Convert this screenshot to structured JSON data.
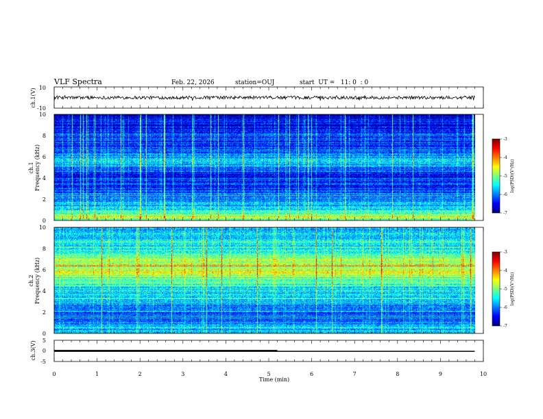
{
  "header": {
    "title": "VLF Spectra",
    "date": "Feb. 22, 2026",
    "station": "station=OUJ",
    "start": "start  UT =   11: 0  : 0"
  },
  "chart_data": [
    {
      "type": "line",
      "panel": "ch1-waveform",
      "ylabel": "ch.1(V)",
      "ylim": [
        -10,
        10
      ],
      "yticks": [
        "10",
        "-10"
      ],
      "xlim": [
        0,
        10
      ],
      "signal": {
        "mean": 0,
        "amplitude_approx": 1.5,
        "end_x": 9.8,
        "color": "#000000"
      }
    },
    {
      "type": "heatmap",
      "panel": "ch1-spectrogram",
      "ylabel_channel": "ch.1",
      "ylabel": "Frequency  (kHz)",
      "ylim": [
        0,
        10
      ],
      "yticks": [
        "0",
        "2",
        "4",
        "6",
        "8",
        "10"
      ],
      "xlim": [
        0,
        10
      ],
      "data_end_x": 9.8,
      "colorbar": {
        "label": "log(PSD)(V²/Hz)",
        "range": [
          -7,
          -3
        ],
        "ticks": [
          "-3",
          "-4",
          "-5",
          "-6",
          "-7"
        ]
      },
      "level_profile": [
        {
          "f": 0.2,
          "level": -5.0
        },
        {
          "f": 0.6,
          "level": -5.2
        },
        {
          "f": 1.0,
          "level": -5.6
        },
        {
          "f": 1.6,
          "level": -6.0
        },
        {
          "f": 2.0,
          "level": -6.1
        },
        {
          "f": 2.6,
          "level": -6.2
        },
        {
          "f": 3.2,
          "level": -6.4
        },
        {
          "f": 3.8,
          "level": -6.5
        },
        {
          "f": 4.2,
          "level": -6.7
        },
        {
          "f": 4.6,
          "level": -6.2
        },
        {
          "f": 5.2,
          "level": -6.0
        },
        {
          "f": 5.8,
          "level": -5.7
        },
        {
          "f": 6.2,
          "level": -6.1
        },
        {
          "f": 6.8,
          "level": -6.3
        },
        {
          "f": 7.4,
          "level": -6.4
        },
        {
          "f": 8.0,
          "level": -6.5
        },
        {
          "f": 8.6,
          "level": -6.6
        },
        {
          "f": 9.2,
          "level": -6.7
        },
        {
          "f": 10.0,
          "level": -6.8
        }
      ]
    },
    {
      "type": "heatmap",
      "panel": "ch2-spectrogram",
      "ylabel_channel": "ch.2",
      "ylabel": "Frequency  (kHz)",
      "ylim": [
        0,
        10
      ],
      "yticks": [
        "0",
        "2",
        "4",
        "6",
        "8",
        "10"
      ],
      "xlim": [
        0,
        10
      ],
      "data_end_x": 9.8,
      "colorbar": {
        "label": "log(PSD)(V²/Hz)",
        "range": [
          -7,
          -3
        ],
        "ticks": [
          "-3",
          "-4",
          "-5",
          "-6",
          "-7"
        ]
      },
      "level_profile": [
        {
          "f": 0.2,
          "level": -5.6
        },
        {
          "f": 0.6,
          "level": -5.9
        },
        {
          "f": 1.0,
          "level": -6.0
        },
        {
          "f": 1.6,
          "level": -6.2
        },
        {
          "f": 2.2,
          "level": -6.0
        },
        {
          "f": 2.8,
          "level": -5.8
        },
        {
          "f": 3.4,
          "level": -5.6
        },
        {
          "f": 4.0,
          "level": -5.7
        },
        {
          "f": 4.6,
          "level": -5.5
        },
        {
          "f": 5.2,
          "level": -5.2
        },
        {
          "f": 5.8,
          "level": -4.9
        },
        {
          "f": 6.4,
          "level": -4.8
        },
        {
          "f": 7.0,
          "level": -5.0
        },
        {
          "f": 7.6,
          "level": -5.3
        },
        {
          "f": 8.2,
          "level": -5.5
        },
        {
          "f": 8.8,
          "level": -5.6
        },
        {
          "f": 9.4,
          "level": -5.7
        },
        {
          "f": 10.0,
          "level": -5.8
        }
      ]
    },
    {
      "type": "line",
      "panel": "ch3-waveform",
      "ylabel": "ch.3(V)",
      "ylim": [
        -5,
        5
      ],
      "yticks": [
        "5",
        "0",
        "-5"
      ],
      "xlim": [
        0,
        10
      ],
      "series": [
        {
          "x": [
            0,
            5.2
          ],
          "y": [
            0.1,
            0.1
          ]
        },
        {
          "x": [
            0,
            9.8
          ],
          "y": [
            -0.2,
            -0.2
          ]
        }
      ]
    }
  ],
  "xaxis": {
    "label": "Time  (min)",
    "ticks": [
      "0",
      "1",
      "2",
      "3",
      "4",
      "5",
      "6",
      "7",
      "8",
      "9",
      "10"
    ]
  }
}
